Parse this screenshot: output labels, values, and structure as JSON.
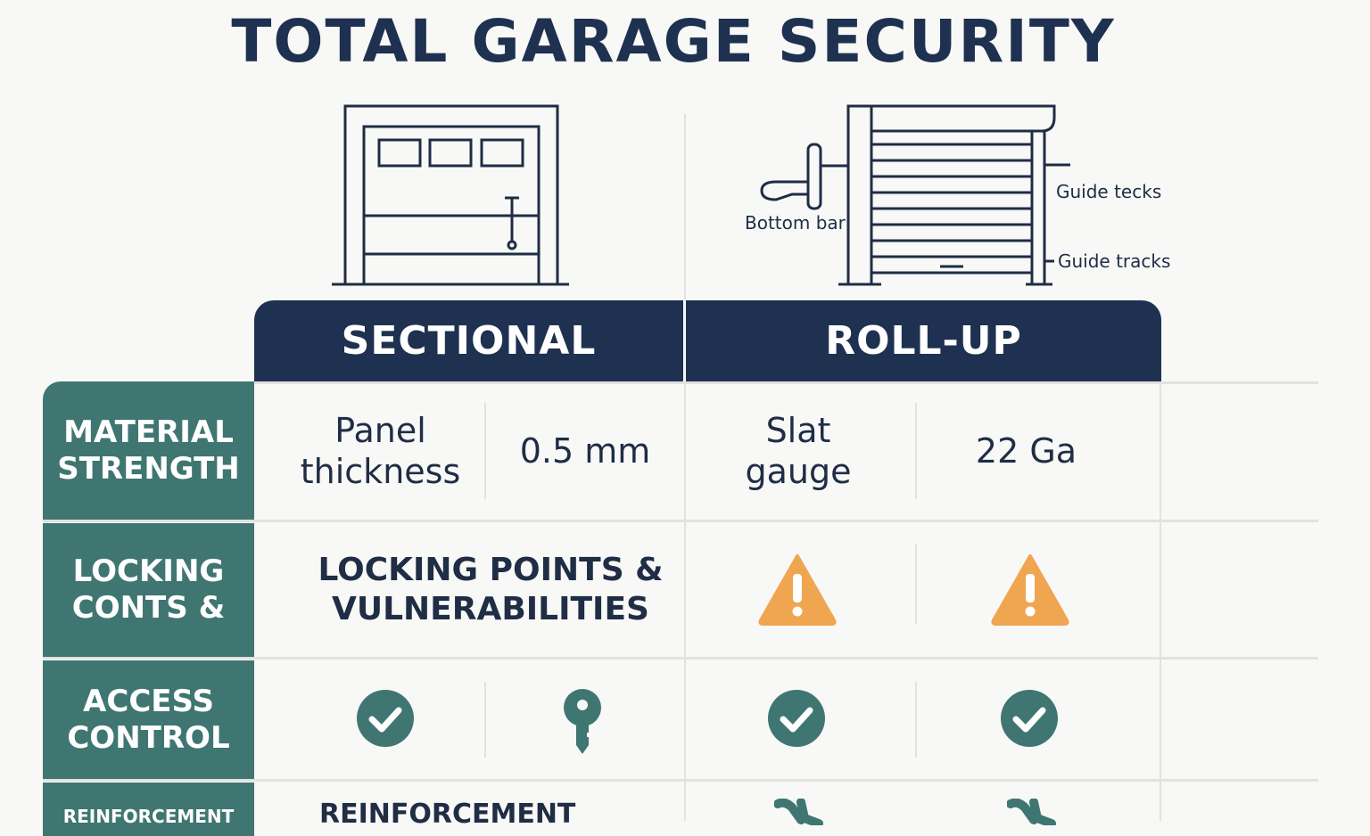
{
  "title": "TOTAL GARAGE SECURITY",
  "colors": {
    "navy": "#1f3150",
    "teal": "#3f7672",
    "warning": "#f0a550"
  },
  "illustration": {
    "labels": {
      "bottom_bar": "Bottom bar",
      "guide_tecks": "Guide tecks",
      "guide_tracks": "Guide tracks"
    }
  },
  "columns": {
    "sectional": "SECTIONAL",
    "rollup": "ROLL-UP"
  },
  "rows": [
    {
      "label": "MATERIAL STRENGTH",
      "sectional_label": "Panel thickness",
      "sectional_value": "0.5 mm",
      "rollup_label": "Slat gauge",
      "rollup_value": "22 Ga"
    },
    {
      "label": "LOCKING CONTS &",
      "sectional_text": "LOCKING POINTS & VULNERABILITIES",
      "rollup_icons": [
        "warning-icon",
        "warning-icon"
      ]
    },
    {
      "label": "ACCESS CONTROL",
      "sectional_icons": [
        "check-icon",
        "key-icon"
      ],
      "rollup_icons": [
        "check-icon",
        "check-icon"
      ]
    },
    {
      "label": "REINFORCEMENT",
      "sectional_text": "REINFORCEMENT",
      "rollup_icons": [
        "wrench-icon",
        "wrench-icon"
      ]
    }
  ]
}
